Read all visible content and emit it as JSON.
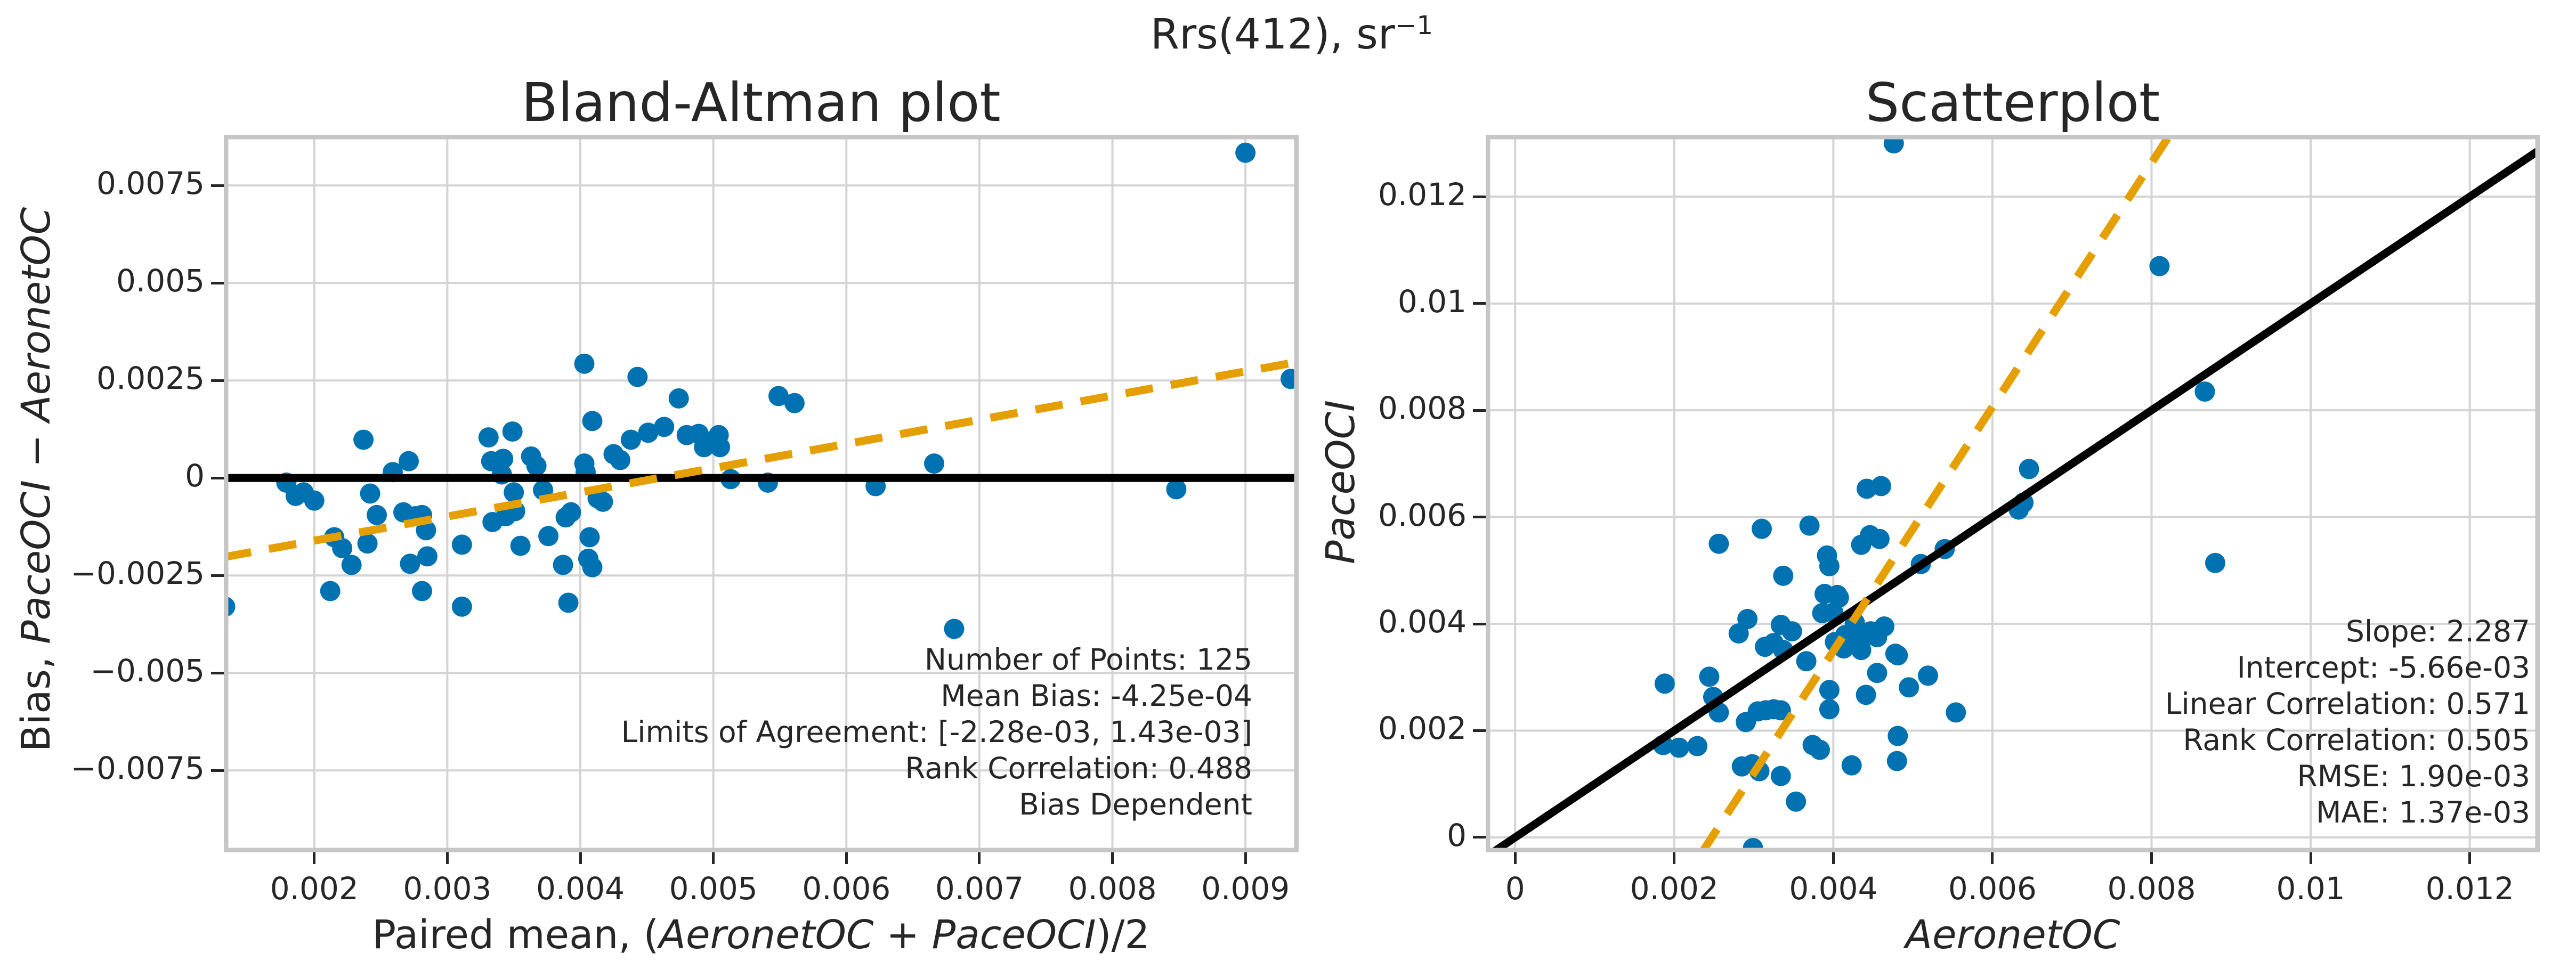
{
  "suptitle": {
    "main": "Rrs(412), sr",
    "superscript": "−1"
  },
  "colors": {
    "dot": "#0072B2",
    "trend": "#E69F00",
    "identity": "#000000",
    "grid": "#d4d4d4",
    "spine": "#c6c6c6",
    "text": "#262626",
    "background": "#ffffff"
  },
  "chart_data": [
    {
      "type": "scatter",
      "name": "bland-altman",
      "title": "Bland-Altman plot",
      "xlabel_parts": [
        {
          "text": "Paired mean, (",
          "italic": false
        },
        {
          "text": "AeronetOC",
          "italic": true
        },
        {
          "text": " + ",
          "italic": false
        },
        {
          "text": "PaceOCI",
          "italic": true
        },
        {
          "text": ")/2",
          "italic": false
        }
      ],
      "ylabel_parts": [
        {
          "text": "Bias, ",
          "italic": false
        },
        {
          "text": "PaceOCI",
          "italic": true
        },
        {
          "text": " − ",
          "italic": false
        },
        {
          "text": "AeronetOC",
          "italic": true
        }
      ],
      "xlim": [
        0.00132,
        0.0094
      ],
      "ylim": [
        -0.0096,
        0.0088
      ],
      "grid": true,
      "legend": "none",
      "xtick_values": [
        0.002,
        0.003,
        0.004,
        0.005,
        0.006,
        0.007,
        0.008,
        0.009
      ],
      "xtick_labels": [
        "0.002",
        "0.003",
        "0.004",
        "0.005",
        "0.006",
        "0.007",
        "0.008",
        "0.009"
      ],
      "ytick_values": [
        0.0075,
        0.005,
        0.0025,
        0,
        -0.0025,
        -0.005,
        -0.0075
      ],
      "ytick_labels": [
        "0.0075",
        "0.005",
        "0.0025",
        "0",
        "−0.0025",
        "−0.005",
        "−0.0075"
      ],
      "lines": [
        {
          "name": "zero-bias-line",
          "style": "solid",
          "color": "identity",
          "points": [
            [
              0.00132,
              0
            ],
            [
              0.0094,
              0
            ]
          ]
        },
        {
          "name": "bias-trend-line",
          "style": "dashed",
          "color": "trend",
          "points": [
            [
              0.00132,
              -0.00203
            ],
            [
              0.0094,
              0.00298
            ]
          ]
        }
      ],
      "points": [
        [
          0.00179,
          -0.00012
        ],
        [
          0.00186,
          -0.00046
        ],
        [
          0.00192,
          -0.00037
        ],
        [
          0.002,
          -0.00058
        ],
        [
          0.00237,
          0.00098
        ],
        [
          0.00242,
          -0.0004
        ],
        [
          0.00247,
          -0.00095
        ],
        [
          0.00215,
          -0.00152
        ],
        [
          0.00221,
          -0.0018
        ],
        [
          0.00228,
          -0.00223
        ],
        [
          0.0024,
          -0.00168
        ],
        [
          0.00212,
          -0.0029
        ],
        [
          0.00133,
          -0.0033
        ],
        [
          0.00259,
          0.00015
        ],
        [
          0.00271,
          0.00043
        ],
        [
          0.00267,
          -0.00088
        ],
        [
          0.00276,
          -0.00098
        ],
        [
          0.00281,
          -0.00095
        ],
        [
          0.00284,
          -0.00134
        ],
        [
          0.00272,
          -0.0022
        ],
        [
          0.00285,
          -0.00201
        ],
        [
          0.00281,
          -0.0029
        ],
        [
          0.00311,
          -0.0033
        ],
        [
          0.00311,
          -0.00171
        ],
        [
          0.00331,
          0.00104
        ],
        [
          0.00333,
          0.00043
        ],
        [
          0.00342,
          0.00049
        ],
        [
          0.00349,
          0.00119
        ],
        [
          0.00341,
          9e-05
        ],
        [
          0.00344,
          -0.00098
        ],
        [
          0.0035,
          -0.00037
        ],
        [
          0.00351,
          -0.00085
        ],
        [
          0.00334,
          -0.00113
        ],
        [
          0.00355,
          -0.00174
        ],
        [
          0.00363,
          0.00055
        ],
        [
          0.00367,
          0.00031
        ],
        [
          0.00372,
          -0.00031
        ],
        [
          0.00376,
          -0.00149
        ],
        [
          0.00391,
          -0.0032
        ],
        [
          0.00387,
          -0.00223
        ],
        [
          0.00389,
          -0.00101
        ],
        [
          0.00393,
          -0.00088
        ],
        [
          0.00403,
          0.00037
        ],
        [
          0.00404,
          0.00015
        ],
        [
          0.00403,
          0.00293
        ],
        [
          0.00409,
          0.00146
        ],
        [
          0.00407,
          -0.00152
        ],
        [
          0.00406,
          -0.00207
        ],
        [
          0.00409,
          -0.00229
        ],
        [
          0.00443,
          0.00259
        ],
        [
          0.00474,
          0.00204
        ],
        [
          0.00438,
          0.00098
        ],
        [
          0.00451,
          0.00116
        ],
        [
          0.00463,
          0.00131
        ],
        [
          0.00425,
          0.00061
        ],
        [
          0.0043,
          0.00046
        ],
        [
          0.0048,
          0.0011
        ],
        [
          0.00489,
          0.00113
        ],
        [
          0.00493,
          0.00079
        ],
        [
          0.005,
          0.00088
        ],
        [
          0.00504,
          0.0011
        ],
        [
          0.00505,
          0.00079
        ],
        [
          0.00549,
          0.0021
        ],
        [
          0.00561,
          0.00192
        ],
        [
          0.00513,
          -3e-05
        ],
        [
          0.00541,
          -0.00012
        ],
        [
          0.00622,
          -0.00021
        ],
        [
          0.00666,
          0.00037
        ],
        [
          0.00413,
          -0.00052
        ],
        [
          0.00417,
          -0.00061
        ],
        [
          0.00681,
          -0.00387
        ],
        [
          0.009,
          0.00834
        ],
        [
          0.00934,
          0.00254
        ],
        [
          0.00848,
          -0.00029
        ]
      ],
      "stats_lines": [
        "Number of Points: 125",
        "Mean Bias: -4.25e-04",
        "Limits of Agreement: [-2.28e-03, 1.43e-03]",
        "Rank Correlation: 0.488",
        "Bias Dependent"
      ]
    },
    {
      "type": "scatter",
      "name": "scatterplot",
      "title": "Scatterplot",
      "xlabel_parts": [
        {
          "text": "AeronetOC",
          "italic": true
        }
      ],
      "ylabel_parts": [
        {
          "text": "PaceOCI",
          "italic": true
        }
      ],
      "xlim": [
        -0.00037,
        0.01288
      ],
      "ylim": [
        -0.00028,
        0.01316
      ],
      "grid": true,
      "legend": "none",
      "xtick_values": [
        0,
        0.002,
        0.004,
        0.006,
        0.008,
        0.01,
        0.012
      ],
      "xtick_labels": [
        "0",
        "0.002",
        "0.004",
        "0.006",
        "0.008",
        "0.01",
        "0.012"
      ],
      "ytick_values": [
        0,
        0.002,
        0.004,
        0.006,
        0.008,
        0.01,
        0.012
      ],
      "ytick_labels": [
        "0",
        "0.002",
        "0.004",
        "0.006",
        "0.008",
        "0.01",
        "0.012"
      ],
      "lines": [
        {
          "name": "one-to-one-line",
          "style": "solid",
          "color": "identity",
          "points": [
            [
              -0.00037,
              -0.00037
            ],
            [
              0.01288,
              0.01288
            ]
          ]
        },
        {
          "name": "regression-line",
          "style": "dashed",
          "color": "trend",
          "points": [
            [
              0.00235,
              -0.00028
            ],
            [
              0.00823,
              0.01316
            ]
          ]
        }
      ],
      "regression": {
        "slope": 2.287,
        "intercept": -0.00566
      },
      "points": [
        [
          0.00256,
          0.0055
        ],
        [
          0.0031,
          0.00578
        ],
        [
          0.0037,
          0.00584
        ],
        [
          0.00337,
          0.0049
        ],
        [
          0.00392,
          0.00528
        ],
        [
          0.00395,
          0.00508
        ],
        [
          0.00435,
          0.00548
        ],
        [
          0.00446,
          0.00566
        ],
        [
          0.00458,
          0.00559
        ],
        [
          0.00389,
          0.00456
        ],
        [
          0.00405,
          0.00454
        ],
        [
          0.00292,
          0.00409
        ],
        [
          0.00281,
          0.00382
        ],
        [
          0.00334,
          0.00398
        ],
        [
          0.00348,
          0.00386
        ],
        [
          0.00314,
          0.00357
        ],
        [
          0.00325,
          0.00364
        ],
        [
          0.00337,
          0.00351
        ],
        [
          0.00366,
          0.0033
        ],
        [
          0.00386,
          0.0042
        ],
        [
          0.00447,
          0.00386
        ],
        [
          0.00438,
          0.00375
        ],
        [
          0.00455,
          0.00375
        ],
        [
          0.00464,
          0.00395
        ],
        [
          0.00455,
          0.00308
        ],
        [
          0.00441,
          0.00267
        ],
        [
          0.00395,
          0.00276
        ],
        [
          0.00395,
          0.0024
        ],
        [
          0.00188,
          0.00288
        ],
        [
          0.00244,
          0.00301
        ],
        [
          0.00249,
          0.00263
        ],
        [
          0.00256,
          0.00234
        ],
        [
          0.00305,
          0.00236
        ],
        [
          0.00315,
          0.00238
        ],
        [
          0.00325,
          0.0024
        ],
        [
          0.00334,
          0.00238
        ],
        [
          0.0029,
          0.00216
        ],
        [
          0.00186,
          0.00173
        ],
        [
          0.00206,
          0.00168
        ],
        [
          0.00229,
          0.00171
        ],
        [
          0.00285,
          0.00133
        ],
        [
          0.00298,
          0.00137
        ],
        [
          0.00307,
          0.00124
        ],
        [
          0.00334,
          0.00115
        ],
        [
          0.00353,
          0.00067
        ],
        [
          0.00374,
          0.00173
        ],
        [
          0.00383,
          0.00164
        ],
        [
          0.00423,
          0.00135
        ],
        [
          0.00299,
          -0.0002
        ],
        [
          0.00407,
          0.00449
        ],
        [
          0.004,
          0.00421
        ],
        [
          0.00427,
          0.00402
        ],
        [
          0.00415,
          0.00379
        ],
        [
          0.00428,
          0.00374
        ],
        [
          0.00402,
          0.00366
        ],
        [
          0.00413,
          0.00354
        ],
        [
          0.00435,
          0.00351
        ],
        [
          0.00476,
          0.013
        ],
        [
          0.00442,
          0.00653
        ],
        [
          0.0046,
          0.00658
        ],
        [
          0.0081,
          0.0107
        ],
        [
          0.00867,
          0.00835
        ],
        [
          0.00646,
          0.0069
        ],
        [
          0.00639,
          0.00627
        ],
        [
          0.00633,
          0.00614
        ],
        [
          0.0054,
          0.0054
        ],
        [
          0.0051,
          0.00512
        ],
        [
          0.0088,
          0.00514
        ],
        [
          0.00481,
          0.00341
        ],
        [
          0.00519,
          0.00303
        ],
        [
          0.00495,
          0.00281
        ],
        [
          0.00554,
          0.00234
        ],
        [
          0.00481,
          0.0019
        ],
        [
          0.0048,
          0.00143
        ],
        [
          0.00478,
          0.00344
        ]
      ],
      "stats_lines": [
        "Slope: 2.287",
        "Intercept: -5.66e-03",
        "Linear Correlation: 0.571",
        "Rank Correlation: 0.505",
        "RMSE: 1.90e-03",
        "MAE: 1.37e-03"
      ]
    }
  ]
}
